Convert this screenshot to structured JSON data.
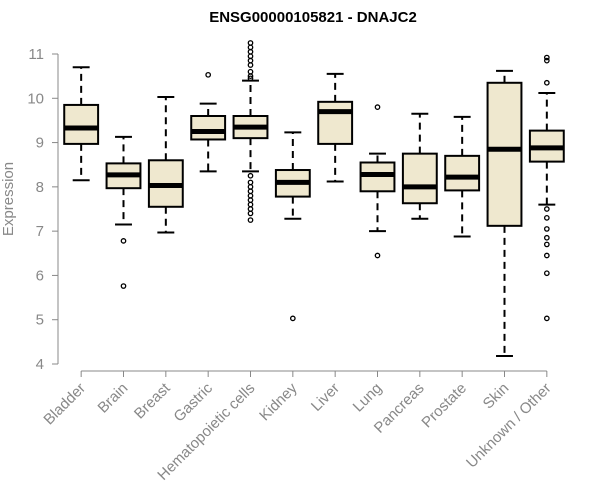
{
  "chart_data": {
    "type": "boxplot",
    "title": "ENSG00000105821 - DNAJC2",
    "xlabel": "",
    "ylabel": "Expression",
    "ylim": [
      4,
      11
    ],
    "yticks": [
      4,
      5,
      6,
      7,
      8,
      9,
      10,
      11
    ],
    "box_fill": "#efe8cf",
    "line_color": "#000000",
    "axis_color": "#888888",
    "categories": [
      "Bladder",
      "Brain",
      "Breast",
      "Gastric",
      "Hematopoietic cells",
      "Kidney",
      "Liver",
      "Lung",
      "Pancreas",
      "Prostate",
      "Skin",
      "Unknown / Other"
    ],
    "boxes": [
      {
        "name": "Bladder",
        "whisker_low": 8.15,
        "q1": 8.97,
        "median": 9.33,
        "q3": 9.85,
        "whisker_high": 10.7,
        "outliers": []
      },
      {
        "name": "Brain",
        "whisker_low": 7.15,
        "q1": 7.97,
        "median": 8.27,
        "q3": 8.53,
        "whisker_high": 9.13,
        "outliers": [
          6.78,
          5.76
        ]
      },
      {
        "name": "Breast",
        "whisker_low": 6.97,
        "q1": 7.55,
        "median": 8.03,
        "q3": 8.6,
        "whisker_high": 10.03,
        "outliers": []
      },
      {
        "name": "Gastric",
        "whisker_low": 8.35,
        "q1": 9.07,
        "median": 9.25,
        "q3": 9.6,
        "whisker_high": 9.88,
        "outliers": [
          10.53
        ]
      },
      {
        "name": "Hematopoietic cells",
        "whisker_low": 8.35,
        "q1": 9.1,
        "median": 9.35,
        "q3": 9.6,
        "whisker_high": 10.4,
        "outliers": [
          11.25,
          11.15,
          11.05,
          10.95,
          10.85,
          10.75,
          10.6,
          10.5,
          10.45,
          8.25,
          8.1,
          8.0,
          7.9,
          7.8,
          7.7,
          7.6,
          7.5,
          7.4,
          7.25
        ]
      },
      {
        "name": "Kidney",
        "whisker_low": 7.28,
        "q1": 7.78,
        "median": 8.1,
        "q3": 8.38,
        "whisker_high": 9.23,
        "outliers": [
          5.03
        ]
      },
      {
        "name": "Liver",
        "whisker_low": 8.12,
        "q1": 8.97,
        "median": 9.7,
        "q3": 9.92,
        "whisker_high": 10.55,
        "outliers": []
      },
      {
        "name": "Lung",
        "whisker_low": 7.0,
        "q1": 7.9,
        "median": 8.28,
        "q3": 8.55,
        "whisker_high": 8.75,
        "outliers": [
          9.8,
          6.45
        ]
      },
      {
        "name": "Pancreas",
        "whisker_low": 7.28,
        "q1": 7.63,
        "median": 8.0,
        "q3": 8.75,
        "whisker_high": 9.65,
        "outliers": []
      },
      {
        "name": "Prostate",
        "whisker_low": 6.88,
        "q1": 7.92,
        "median": 8.22,
        "q3": 8.7,
        "whisker_high": 9.58,
        "outliers": []
      },
      {
        "name": "Skin",
        "whisker_low": 4.18,
        "q1": 7.12,
        "median": 8.85,
        "q3": 10.35,
        "whisker_high": 10.62,
        "outliers": []
      },
      {
        "name": "Unknown / Other",
        "whisker_low": 7.6,
        "q1": 8.57,
        "median": 8.88,
        "q3": 9.27,
        "whisker_high": 10.12,
        "outliers": [
          10.92,
          10.85,
          10.35,
          7.5,
          7.3,
          7.05,
          6.85,
          6.7,
          6.45,
          6.05,
          5.03
        ]
      }
    ]
  }
}
